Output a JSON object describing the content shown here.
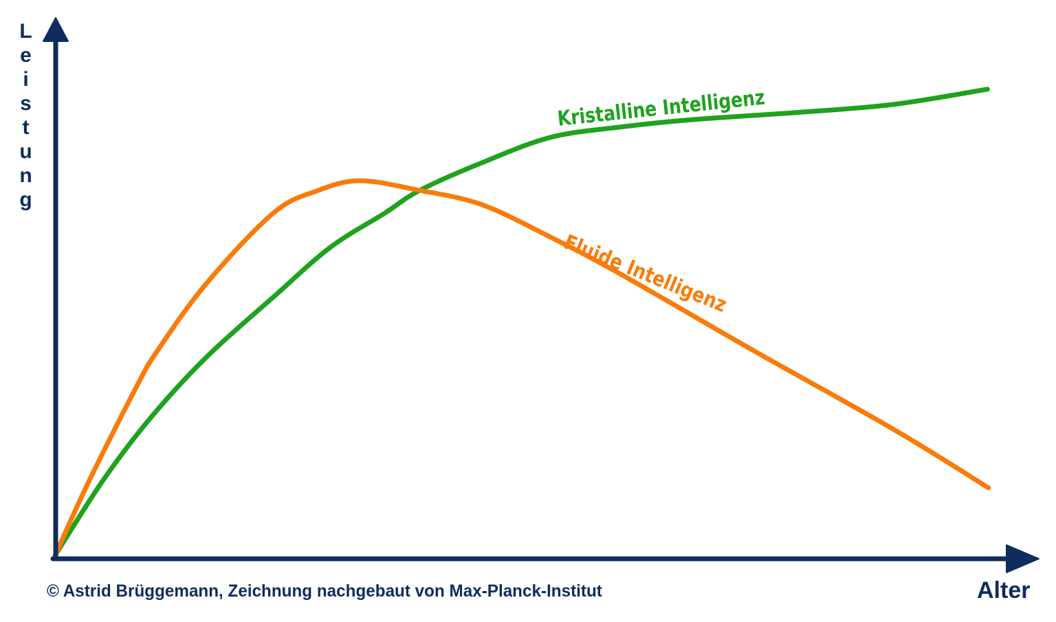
{
  "chart": {
    "y_axis_label": "Leistung",
    "x_axis_label": "Alter",
    "attribution": "© Astrid Brüggemann, Zeichnung nachgebaut von Max-Planck-Institut",
    "colors": {
      "axis_navy": "#0e2d5e",
      "kristalline_green": "#1fa21f",
      "fluide_orange": "#f97c0b",
      "background": "#ffffff"
    }
  },
  "chart_data": {
    "type": "line",
    "title": "",
    "xlabel": "Alter",
    "ylabel": "Leistung",
    "xlim": [
      0,
      100
    ],
    "ylim": [
      0,
      100
    ],
    "grid": false,
    "legend_position": "labels-on-curves",
    "axes_style": "qualitative arrows, no ticks or numeric scale; units are relative (age →, performance ↑)",
    "series": [
      {
        "name": "Kristalline Intelligenz",
        "color": "#1fa21f",
        "shape": "rises steeply from origin, decelerates, keeps slowly increasing into old age with slight uptick at end",
        "points": [
          [
            0,
            0.6
          ],
          [
            5,
            14.6
          ],
          [
            9.9,
            26.1
          ],
          [
            15.6,
            37.2
          ],
          [
            22.7,
            48.6
          ],
          [
            28.4,
            57.5
          ],
          [
            34,
            63.8
          ],
          [
            37.6,
            68
          ],
          [
            44,
            73.1
          ],
          [
            51.1,
            77.8
          ],
          [
            58.2,
            79.7
          ],
          [
            65.2,
            81
          ],
          [
            77.3,
            82.5
          ],
          [
            86.5,
            83.9
          ],
          [
            96.2,
            86.7
          ]
        ]
      },
      {
        "name": "Fluide Intelligenz",
        "color": "#f97c0b",
        "shape": "rises very steeply from origin, peaks in early adulthood, then declines almost linearly with age",
        "points": [
          [
            0,
            0.6
          ],
          [
            3.5,
            14.3
          ],
          [
            8.5,
            32.1
          ],
          [
            10.6,
            38.5
          ],
          [
            15.6,
            50.8
          ],
          [
            22.5,
            63.8
          ],
          [
            27,
            67.9
          ],
          [
            31.4,
            69.8
          ],
          [
            37.4,
            68.1
          ],
          [
            44,
            65.4
          ],
          [
            51.1,
            59.4
          ],
          [
            58.2,
            52.7
          ],
          [
            72.3,
            38.2
          ],
          [
            86.5,
            23.9
          ],
          [
            96.3,
            13.1
          ]
        ]
      }
    ],
    "annotations": [
      {
        "text": "Kristalline Intelligenz",
        "color": "#1fa21f",
        "position": "above green curve, upper middle-right"
      },
      {
        "text": "Fluide Intelligenz",
        "color": "#f97c0b",
        "position": "above orange curve descending segment, middle-right"
      }
    ],
    "intersection_note": "curves cross at roughly x=37, y=68 (relative units)"
  }
}
